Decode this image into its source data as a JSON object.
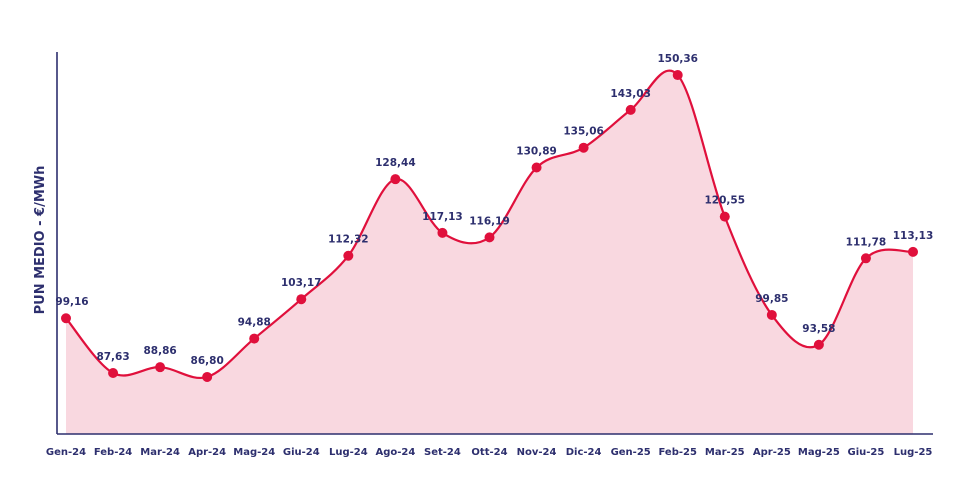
{
  "chart_data": {
    "type": "area",
    "title": "",
    "xlabel": "",
    "ylabel": "PUN MEDIO - €/MWh",
    "categories": [
      "Gen-24",
      "Feb-24",
      "Mar-24",
      "Apr-24",
      "Mag-24",
      "Giu-24",
      "Lug-24",
      "Ago-24",
      "Set-24",
      "Ott-24",
      "Nov-24",
      "Dic-24",
      "Gen-25",
      "Feb-25",
      "Mar-25",
      "Apr-25",
      "Mag-25",
      "Giu-25",
      "Lug-25"
    ],
    "series": [
      {
        "values": [
          99.16,
          87.63,
          88.86,
          86.8,
          94.88,
          103.17,
          112.32,
          128.44,
          117.13,
          116.19,
          130.89,
          135.06,
          143.03,
          150.36,
          120.55,
          99.85,
          93.58,
          111.78,
          113.13
        ],
        "labels": [
          "99,16",
          "87,63",
          "88,86",
          "86,80",
          "94,88",
          "103,17",
          "112,32",
          "128,44",
          "117,13",
          "116,19",
          "130,89",
          "135,06",
          "143,03",
          "150,36",
          "120,55",
          "99,85",
          "93,58",
          "111,78",
          "113,13"
        ]
      }
    ],
    "ylim": [
      75,
      155
    ],
    "grid": false,
    "colors": {
      "line": "#e0103c",
      "fill": "#f9d8e0",
      "point": "#e0103c",
      "axis": "#2d2f6e",
      "text": "#2d2f6e"
    }
  }
}
